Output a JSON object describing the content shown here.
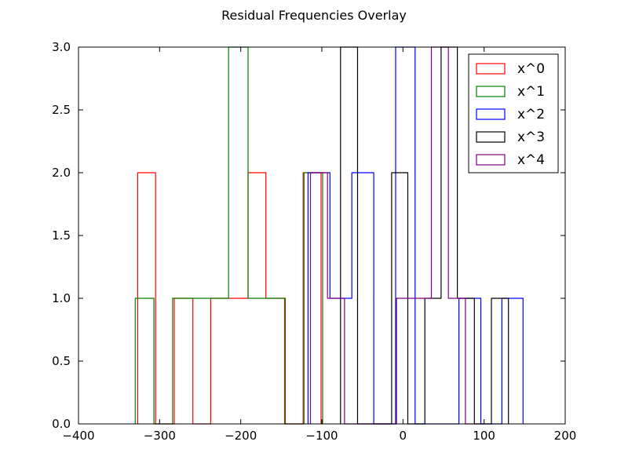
{
  "chart_data": {
    "type": "histogram",
    "title": "Residual Frequencies Overlay",
    "xlabel": "",
    "ylabel": "",
    "xlim": [
      -400,
      200
    ],
    "ylim": [
      0,
      3
    ],
    "xticks": [
      -400,
      -300,
      -200,
      -100,
      0,
      100,
      200
    ],
    "xtick_labels": [
      "−400",
      "−300",
      "−200",
      "−100",
      "0",
      "100",
      "200"
    ],
    "yticks": [
      0,
      0.5,
      1,
      1.5,
      2,
      2.5,
      3
    ],
    "ytick_labels": [
      "0.0",
      "0.5",
      "1.0",
      "1.5",
      "2.0",
      "2.5",
      "3.0"
    ],
    "grid": false,
    "legend_position": "top-right",
    "series": [
      {
        "name": "x^0",
        "color": "#ff0000",
        "edges": [
          -327,
          -305,
          -282,
          -259,
          -237,
          -214,
          -191,
          -169,
          -146,
          -123,
          -101
        ],
        "counts": [
          2,
          0,
          1,
          0,
          1,
          1,
          2,
          1,
          0,
          2
        ]
      },
      {
        "name": "x^1",
        "color": "#008000",
        "edges": [
          -330,
          -307,
          -284,
          -261,
          -238,
          -215,
          -191,
          -168,
          -145,
          -122,
          -99
        ],
        "counts": [
          1,
          0,
          1,
          1,
          1,
          3,
          1,
          1,
          0,
          2
        ]
      },
      {
        "name": "x^2",
        "color": "#0000ff",
        "edges": [
          -117,
          -90,
          -63,
          -36,
          -9,
          15,
          42,
          69,
          96,
          122,
          148
        ],
        "counts": [
          2,
          1,
          2,
          0,
          3,
          0,
          0,
          1,
          0,
          1
        ]
      },
      {
        "name": "x^3",
        "color": "#000000",
        "edges": [
          -77,
          -56,
          -35,
          -14,
          6,
          27,
          47,
          67,
          88,
          109,
          130
        ],
        "counts": [
          3,
          0,
          0,
          2,
          0,
          1,
          3,
          1,
          0,
          1
        ]
      },
      {
        "name": "x^4",
        "color": "#800080",
        "edges": [
          -114,
          -93,
          -72,
          -51,
          -29,
          -8,
          14,
          35,
          56,
          77,
          99
        ],
        "counts": [
          2,
          1,
          0,
          0,
          0,
          1,
          1,
          3,
          1,
          0
        ]
      }
    ]
  }
}
